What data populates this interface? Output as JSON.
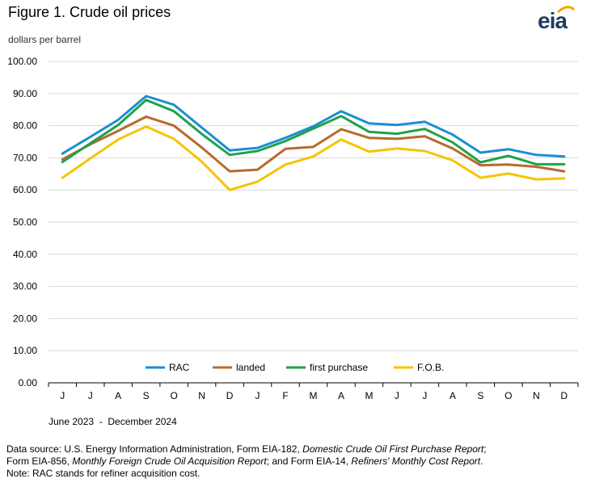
{
  "header": {
    "title": "Figure 1. Crude oil prices",
    "logo_text": "eia",
    "units": "dollars per barrel"
  },
  "chart_data": {
    "type": "line",
    "title": "Figure 1. Crude oil prices",
    "ylabel": "dollars per barrel",
    "xlabel": "June 2023  -  December 2024",
    "ylim": [
      0,
      100
    ],
    "yticks": [
      "0.00",
      "10.00",
      "20.00",
      "30.00",
      "40.00",
      "50.00",
      "60.00",
      "70.00",
      "80.00",
      "90.00",
      "100.00"
    ],
    "categories": [
      "J",
      "J",
      "A",
      "S",
      "O",
      "N",
      "D",
      "J",
      "F",
      "M",
      "A",
      "M",
      "J",
      "J",
      "A",
      "S",
      "O",
      "N",
      "D"
    ],
    "grid": true,
    "legend_position": "bottom",
    "series": [
      {
        "name": "RAC",
        "color": "#1a8fd0",
        "values": [
          71.3,
          76.5,
          81.8,
          89.2,
          86.5,
          79.4,
          72.3,
          73.1,
          76.2,
          79.8,
          84.5,
          80.7,
          80.2,
          81.2,
          77.2,
          71.6,
          72.7,
          70.9,
          70.4
        ]
      },
      {
        "name": "landed",
        "color": "#b8692e",
        "values": [
          69.5,
          74.2,
          78.4,
          82.8,
          80.0,
          73.2,
          65.8,
          66.3,
          72.8,
          73.4,
          78.9,
          76.2,
          75.9,
          76.7,
          72.9,
          67.7,
          67.9,
          67.2,
          65.8
        ]
      },
      {
        "name": "first purchase",
        "color": "#1ea24a",
        "values": [
          68.7,
          74.5,
          80.2,
          88.0,
          84.5,
          77.4,
          70.9,
          72.1,
          75.2,
          79.1,
          83.0,
          78.1,
          77.5,
          79.0,
          74.8,
          68.6,
          70.6,
          68.0,
          68.0
        ]
      },
      {
        "name": "F.O.B.",
        "color": "#f5c400",
        "values": [
          63.8,
          69.8,
          75.7,
          79.7,
          75.9,
          68.8,
          60.0,
          62.6,
          67.9,
          70.4,
          75.7,
          71.9,
          72.9,
          72.1,
          69.2,
          63.8,
          65.1,
          63.3,
          63.6
        ]
      }
    ]
  },
  "footer": {
    "note_line1_a": "Data source: U.S. Energy Information Administration, Form EIA-182, ",
    "note_line1_b": "Domestic Crude Oil First Purchase Report",
    "note_line1_c": ";",
    "note_line2_a": "Form EIA-856, ",
    "note_line2_b": "Monthly Foreign Crude Oil Acquisition Report",
    "note_line2_c": "; and Form EIA-14, ",
    "note_line2_d": "Refiners' Monthly Cost Report",
    "note_line2_e": ".",
    "note_line3": "Note: RAC stands for refiner acquisition cost."
  },
  "colors": {
    "gridline": "#d9d9d9",
    "axis": "#000000",
    "logo": "#1d3e5c",
    "logo_arc": "#f5a800"
  }
}
